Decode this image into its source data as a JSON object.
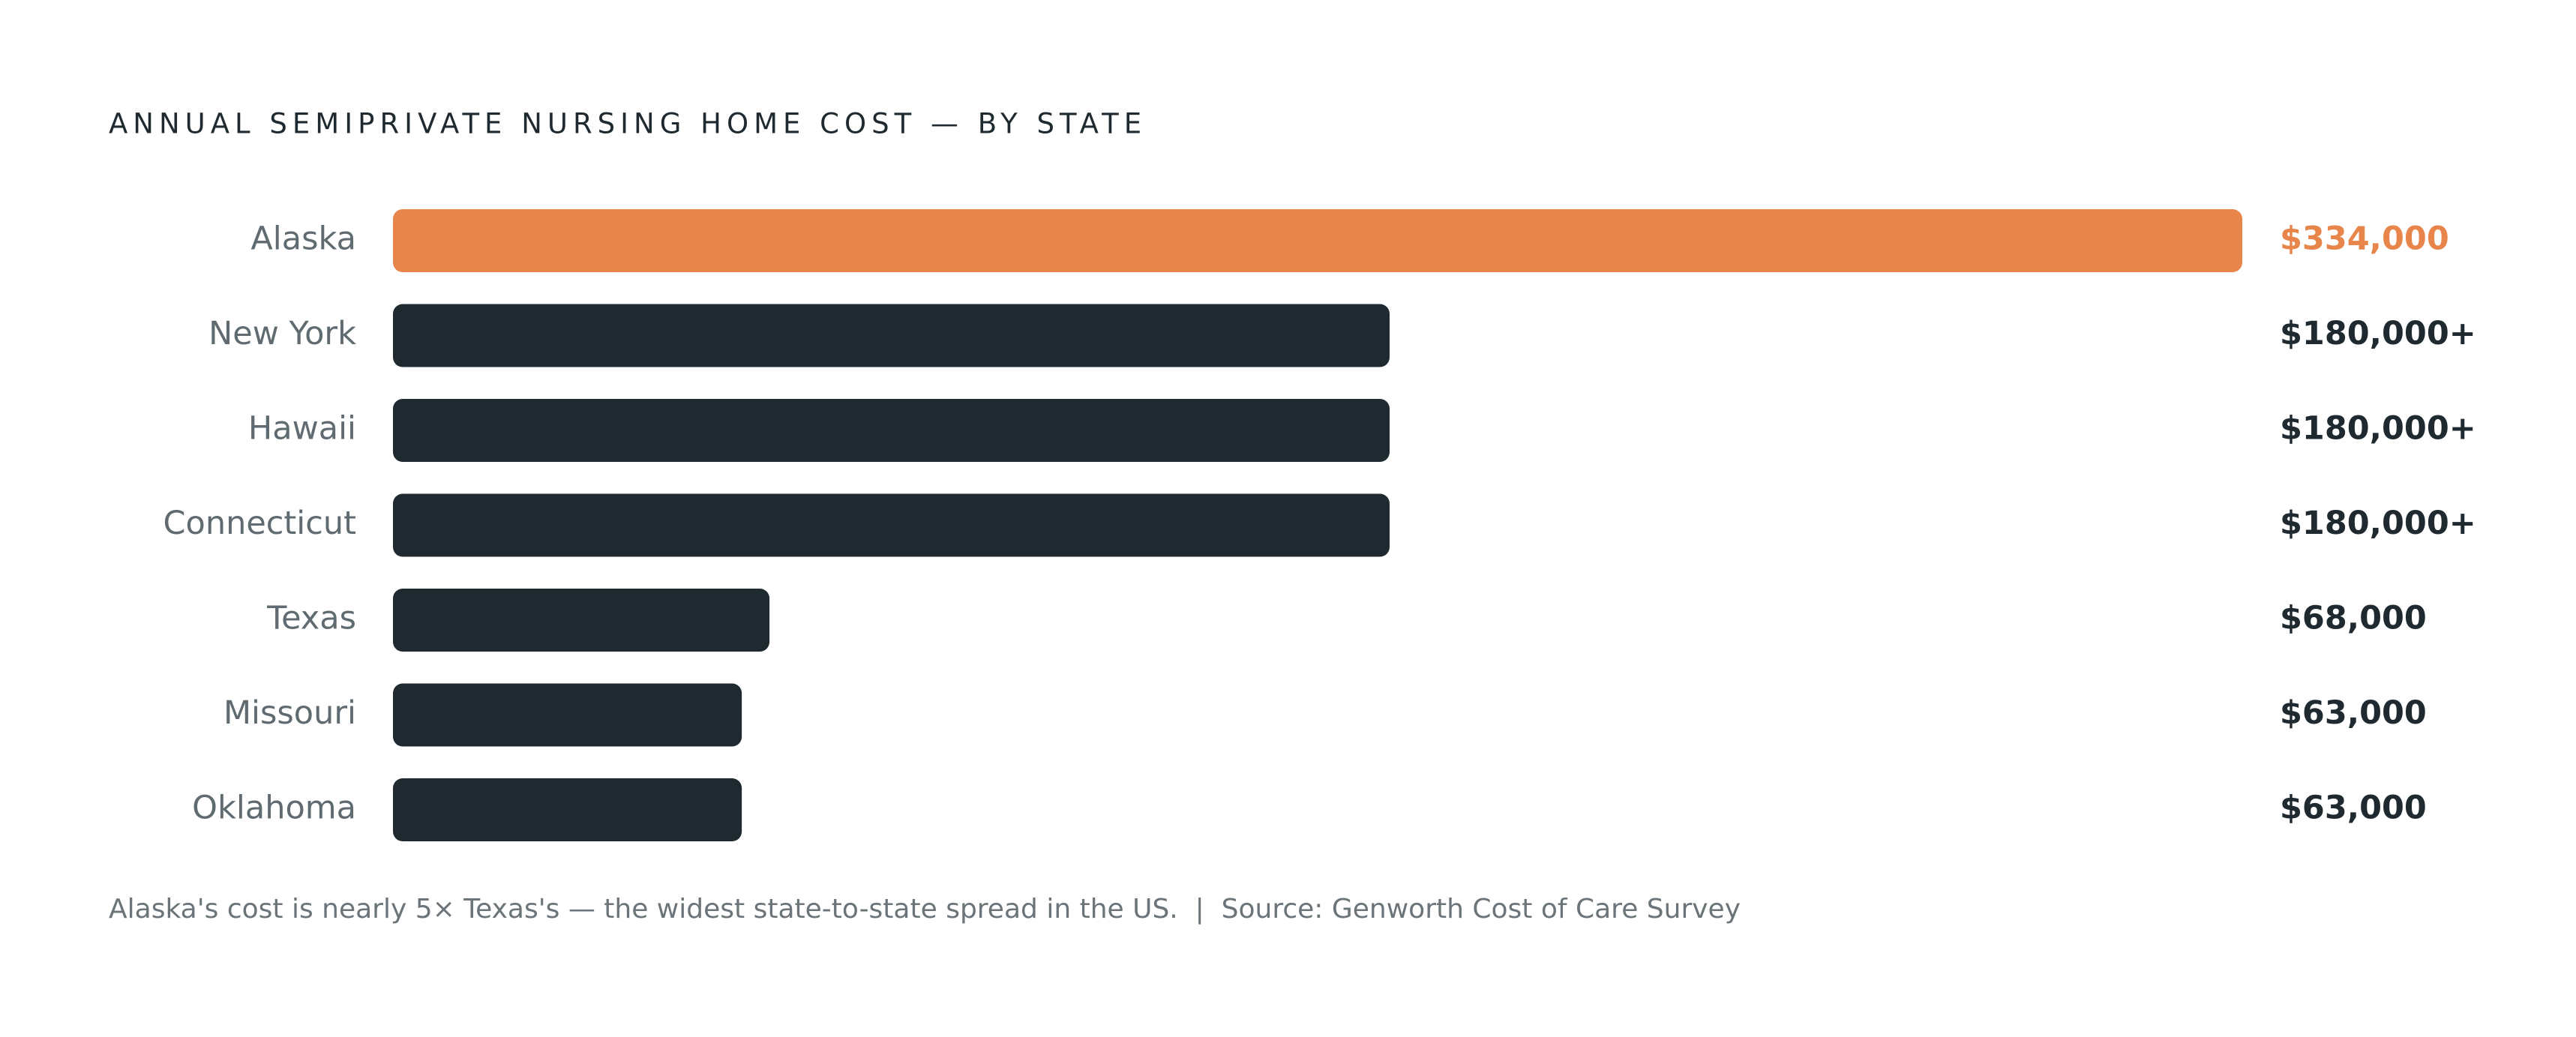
{
  "chart_data": {
    "type": "bar",
    "orientation": "horizontal",
    "title": "ANNUAL SEMIPRIVATE NURSING HOME COST — BY STATE",
    "categories": [
      "Alaska",
      "New York",
      "Hawaii",
      "Connecticut",
      "Texas",
      "Missouri",
      "Oklahoma"
    ],
    "values": [
      334000,
      180000,
      180000,
      180000,
      68000,
      63000,
      63000
    ],
    "value_labels": [
      "$334,000",
      "$180,000+",
      "$180,000+",
      "$180,000+",
      "$68,000",
      "$63,000",
      "$63,000"
    ],
    "colors": [
      "#e8854a",
      "#1e2a30",
      "#1e2a30",
      "#1e2a30",
      "#1e2a30",
      "#1e2a30",
      "#1e2a30"
    ],
    "caption": "Alaska's cost is nearly 5× Texas's — the widest state-to-state spread in the US.  |  Source: Genworth Cost of Care Survey"
  }
}
